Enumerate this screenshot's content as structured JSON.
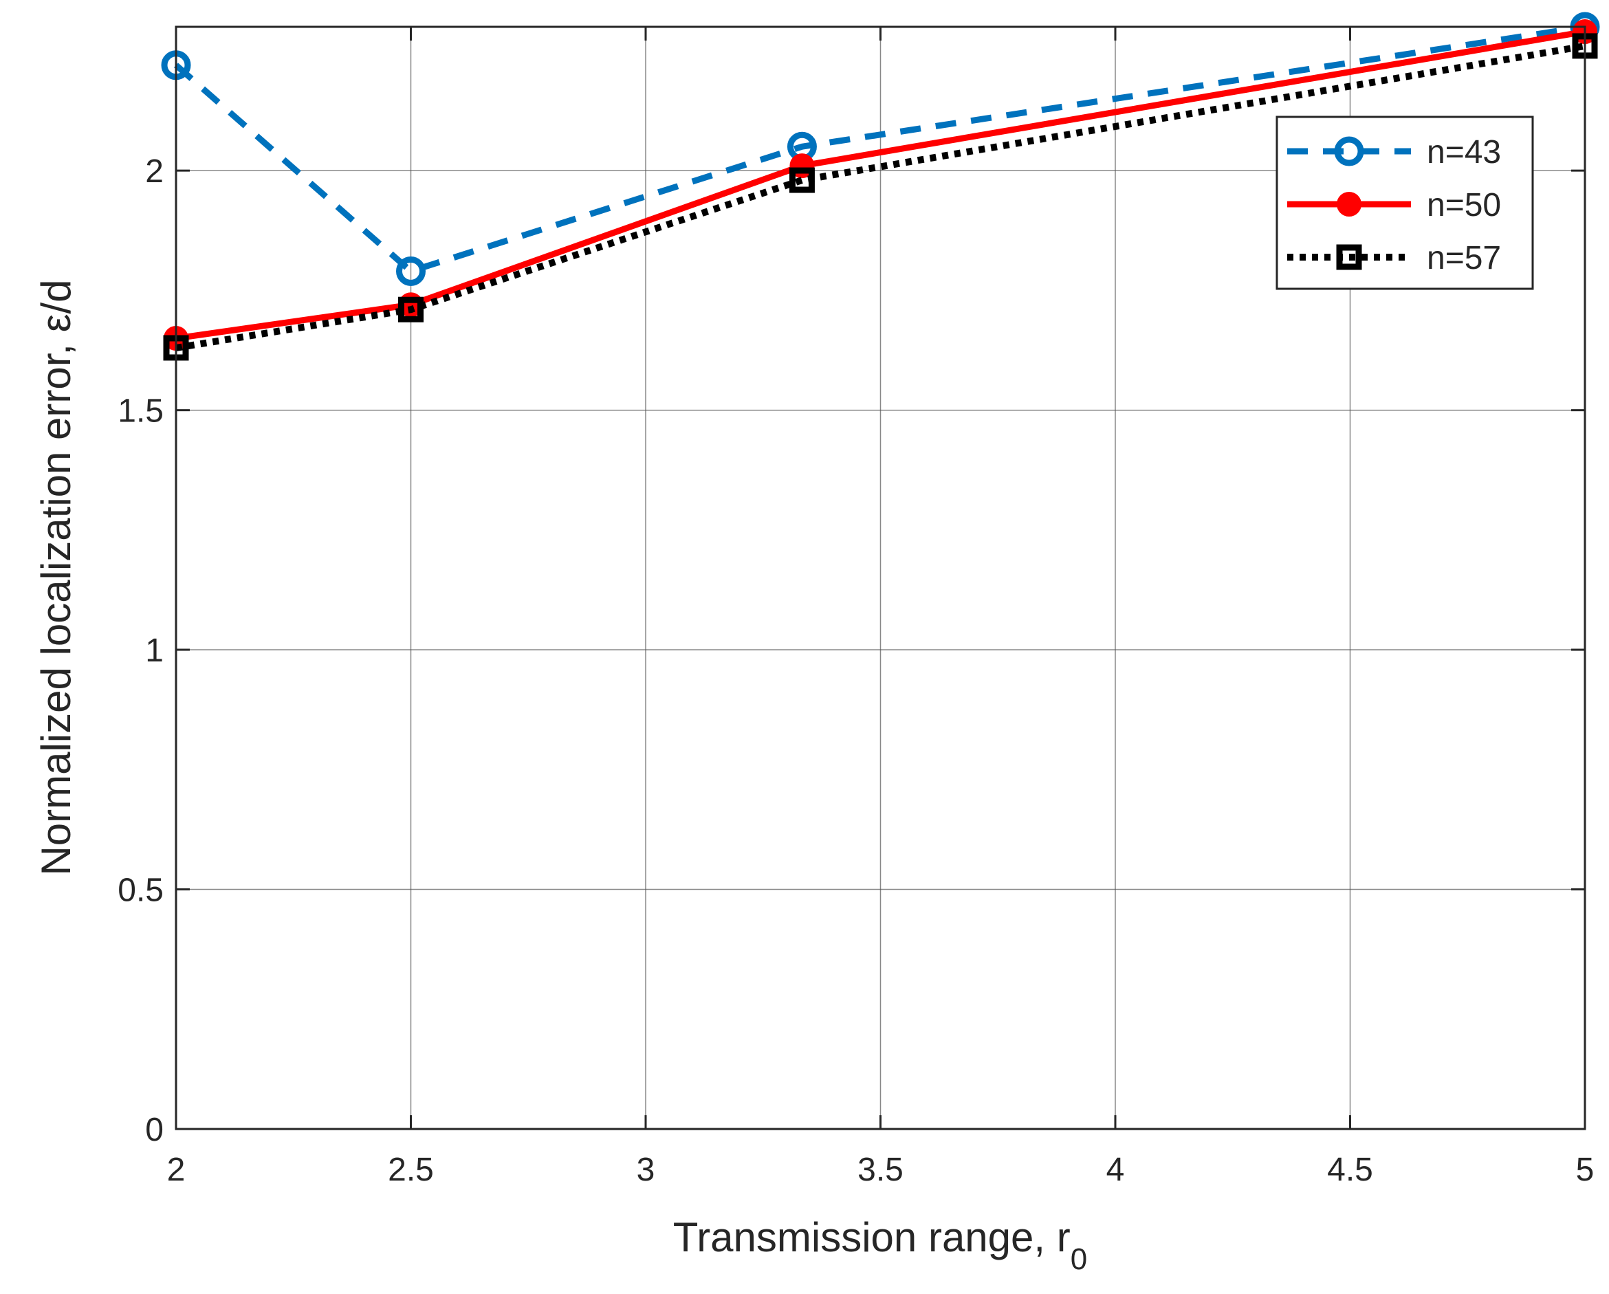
{
  "chart_data": {
    "type": "line",
    "title": "",
    "xlabel": "Transmission range, r",
    "xlabel_sub": "0",
    "ylabel": "Normalized localization error, ε/d",
    "xlim": [
      2,
      5
    ],
    "ylim": [
      0,
      2.3
    ],
    "xticks": [
      2,
      2.5,
      3,
      3.5,
      4,
      4.5,
      5
    ],
    "xtick_labels": [
      "2",
      "2.5",
      "3",
      "3.5",
      "4",
      "4.5",
      "5"
    ],
    "yticks": [
      0,
      0.5,
      1,
      1.5,
      2
    ],
    "ytick_labels": [
      "0",
      "0.5",
      "1",
      "1.5",
      "2"
    ],
    "grid": true,
    "legend_position": "top-right",
    "x": [
      2,
      2.5,
      3.333,
      5
    ],
    "series": [
      {
        "name": "n=43",
        "values": [
          2.22,
          1.79,
          2.05,
          2.3
        ],
        "color": "#0072BD",
        "style": "dashed",
        "marker": "circle"
      },
      {
        "name": "n=50",
        "values": [
          1.65,
          1.72,
          2.01,
          2.29
        ],
        "color": "#FF0000",
        "style": "solid",
        "marker": "filled-circle"
      },
      {
        "name": "n=57",
        "values": [
          1.63,
          1.71,
          1.98,
          2.26
        ],
        "color": "#000000",
        "style": "dotted",
        "marker": "square"
      }
    ]
  }
}
